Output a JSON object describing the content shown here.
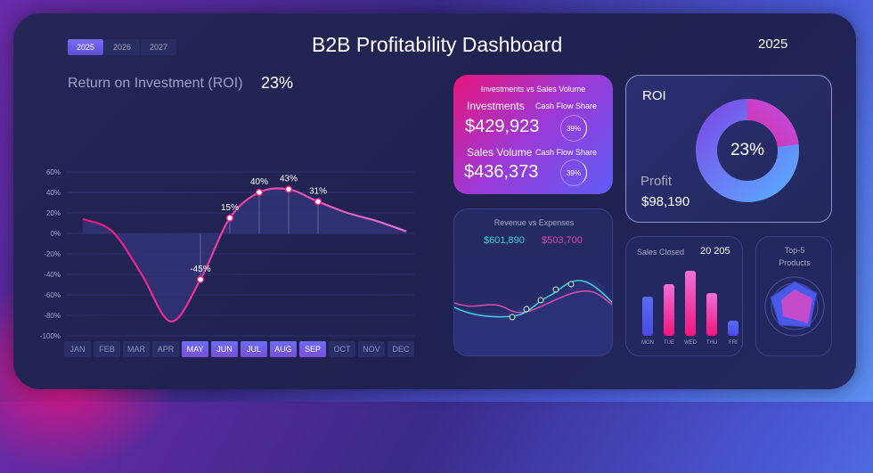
{
  "header": {
    "title": "B2B Profitability Dashboard",
    "year": "2025",
    "year_tabs": [
      "2025",
      "2026",
      "2027"
    ]
  },
  "roi_panel": {
    "label": "Return on Investment (ROI)",
    "value": "23%"
  },
  "chart_data": {
    "type": "line",
    "title": "Return on Investment (ROI)",
    "categories": [
      "JAN",
      "FEB",
      "MAR",
      "APR",
      "MAY",
      "JUN",
      "JUL",
      "AUG",
      "SEP",
      "OCT",
      "NOV",
      "DEC"
    ],
    "values": [
      14,
      2,
      -40,
      -86,
      -45,
      15,
      40,
      43,
      31,
      20,
      12,
      2
    ],
    "point_labels": {
      "4": "-45%",
      "5": "15%",
      "6": "40%",
      "7": "43%",
      "8": "31%"
    },
    "selected": [
      "MAY",
      "JUN",
      "JUL",
      "AUG",
      "SEP"
    ],
    "yticks": [
      "60%",
      "40%",
      "20%",
      "0%",
      "-20%",
      "-40%",
      "-60%",
      "-80%",
      "-100%"
    ],
    "ylim": [
      -100,
      60
    ],
    "grid": true
  },
  "investments": {
    "title": "Investments vs Sales Volume",
    "inv_label": "Investments",
    "inv_value": "$429,923",
    "share_label": "Cash Flow Share",
    "inv_share": "39%",
    "sales_label": "Sales Volume",
    "sales_value": "$436,373",
    "sales_share": "39%"
  },
  "roi_card": {
    "label": "ROI",
    "value": "23%",
    "profit_label": "Profit",
    "profit_value": "$98,190",
    "roi_fraction": 0.23
  },
  "revenue": {
    "title": "Revenue vs Expenses",
    "revenue_value": "$601,890",
    "expenses_value": "$503,700",
    "colors": {
      "revenue": "#3fd3d6",
      "expenses": "#e04aa8"
    }
  },
  "sales_closed": {
    "label": "Sales Closed",
    "value": "20 205",
    "days": [
      "MON",
      "TUE",
      "WED",
      "THU",
      "FRI"
    ],
    "values": [
      44,
      58,
      73,
      48,
      17
    ]
  },
  "top_products": {
    "title_line1": "Top-5",
    "title_line2": "Products"
  }
}
